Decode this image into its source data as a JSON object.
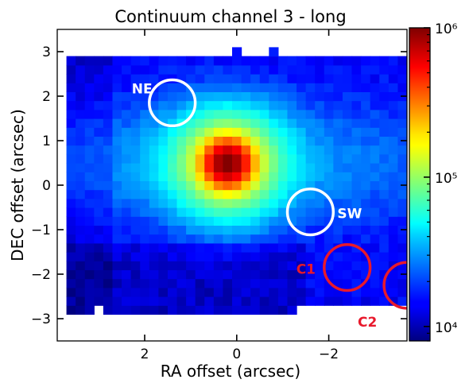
{
  "chart_data": {
    "type": "heatmap",
    "title": "Continuum channel 3 - long",
    "xlabel": "RA offset (arcsec)",
    "ylabel": "DEC offset (arcsec)",
    "xlim": [
      3.9,
      -3.7
    ],
    "ylim": [
      -3.5,
      3.5
    ],
    "x_ticks": [
      {
        "value": 2,
        "label": "2"
      },
      {
        "value": 0,
        "label": "0"
      },
      {
        "value": -2,
        "label": "−2"
      }
    ],
    "y_ticks": [
      {
        "value": 3,
        "label": "3"
      },
      {
        "value": 2,
        "label": "2"
      },
      {
        "value": 1,
        "label": "1"
      },
      {
        "value": 0,
        "label": "0"
      },
      {
        "value": -1,
        "label": "−1"
      },
      {
        "value": -2,
        "label": "−2"
      },
      {
        "value": -3,
        "label": "−3"
      }
    ],
    "colorbar": {
      "scale": "log",
      "colormap": "jet",
      "range": [
        8000,
        1000000
      ],
      "ticks": [
        {
          "value": 10000,
          "label": "10⁴"
        },
        {
          "value": 100000,
          "label": "10⁵"
        },
        {
          "value": 1000000,
          "label": "10⁶"
        }
      ]
    },
    "image": {
      "pixel_size_arcsec": 0.2,
      "x_range": [
        3.7,
        -3.7
      ],
      "y_range": [
        -2.9,
        3.1
      ],
      "peak": {
        "ra": 0.2,
        "dec": 0.5,
        "value": 1000000
      },
      "background": 14000
    },
    "regions": [
      {
        "name": "NE",
        "ra": 1.4,
        "dec": 1.85,
        "radius": 0.5,
        "color": "#ffffff"
      },
      {
        "name": "SW",
        "ra": -1.6,
        "dec": -0.6,
        "radius": 0.5,
        "color": "#ffffff"
      },
      {
        "name": "C1",
        "ra": -2.4,
        "dec": -1.85,
        "radius": 0.5,
        "color": "#e8192c"
      },
      {
        "name": "C2",
        "ra": -3.7,
        "dec": -2.25,
        "radius": 0.5,
        "color": "#e8192c"
      }
    ]
  }
}
